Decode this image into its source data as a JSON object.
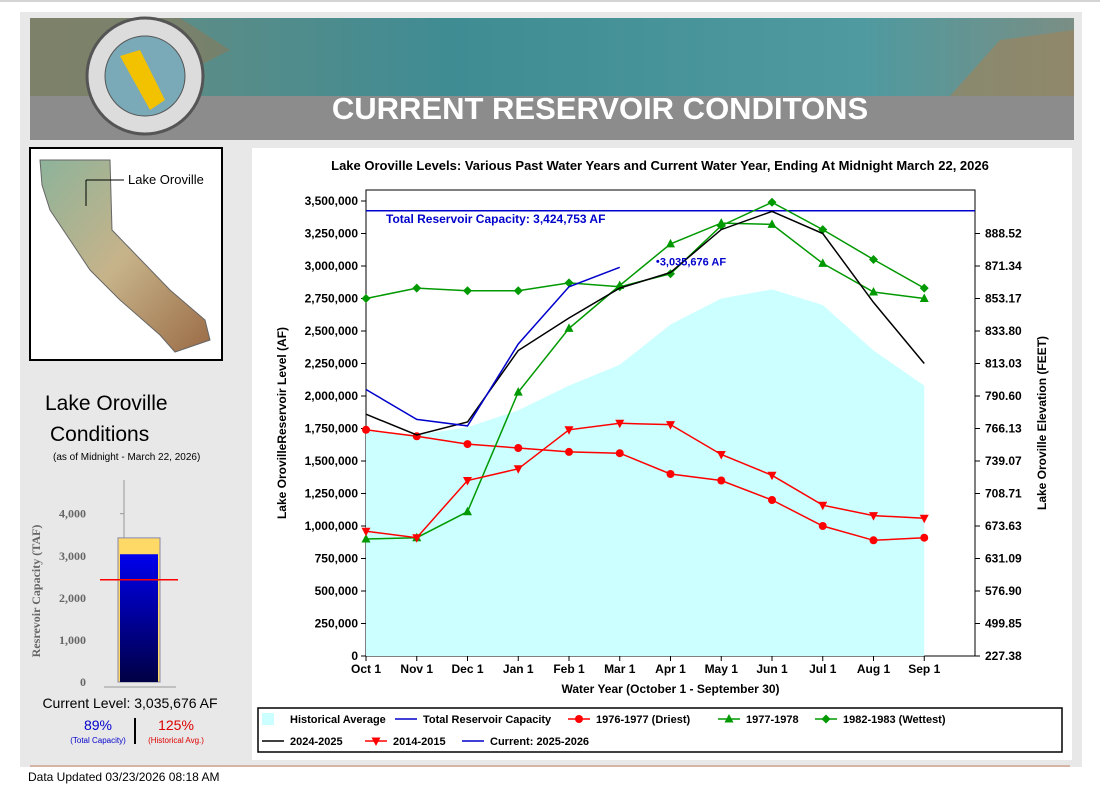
{
  "header": {
    "title": "CURRENT RESERVOIR CONDITONS"
  },
  "sidebar": {
    "map_label": "Lake Oroville",
    "heading": [
      "Lake Oroville",
      "Conditions"
    ],
    "as_of": "(as of Midnight - March 22, 2026)",
    "current_level": "Current Level: 3,035,676 AF",
    "pct_capacity": "89%",
    "pct_capacity_note": "(Total Capacity)",
    "pct_average": "125%",
    "pct_average_note": "(Historical Avg.)"
  },
  "chart_data": [
    {
      "type": "line",
      "title": "Lake Oroville Levels: Various Past Water Years and Current Water Year, Ending At Midnight March 22, 2026",
      "x_label": "Water Year (October 1 - September 30)",
      "y_label": "Lake OrovilleReservoir Level (AF)",
      "y2_label": "Lake Oroville Elevation (FEET)",
      "categories": [
        "Oct 1",
        "Nov 1",
        "Dec 1",
        "Jan 1",
        "Feb 1",
        "Mar 1",
        "Apr 1",
        "May 1",
        "Jun 1",
        "Jul 1",
        "Aug 1",
        "Sep 1"
      ],
      "ylim": [
        0,
        3500000
      ],
      "yticks": [
        0,
        {
          "value": 250000,
          "label": "250,000"
        },
        {
          "value": 500000,
          "label": "500,000"
        },
        {
          "value": 750000,
          "label": "750,000"
        },
        {
          "value": 1000000,
          "label": "1,000,000"
        },
        {
          "value": 1250000,
          "label": "1,250,000"
        },
        {
          "value": 1500000,
          "label": "1,500,000"
        },
        {
          "value": 1750000,
          "label": "1,750,000"
        },
        {
          "value": 2000000,
          "label": "2,000,000"
        },
        {
          "value": 2250000,
          "label": "2,250,000"
        },
        {
          "value": 2500000,
          "label": "2,500,000"
        },
        {
          "value": 2750000,
          "label": "2,750,000"
        },
        {
          "value": 3000000,
          "label": "3,000,000"
        },
        {
          "value": 3250000,
          "label": "3,250,000"
        },
        {
          "value": 3500000,
          "label": "3,500,000"
        }
      ],
      "y2ticks": [
        227.38,
        499.85,
        {
          "value": 576.9,
          "label": "576.90"
        },
        631.09,
        673.63,
        708.71,
        739.07,
        766.13,
        {
          "value": 790.6,
          "label": "790.60"
        },
        813.03,
        {
          "value": 833.8,
          "label": "833.80"
        },
        853.17,
        871.34,
        888.52
      ],
      "reference_line": {
        "name": "Total Reservoir Capacity",
        "value": 3424753,
        "label": "Total Reservoir Capacity: 3,424,753 AF",
        "color": "#0000cc"
      },
      "current_label": {
        "value": 3035676,
        "label": "3,035,676 AF"
      },
      "series": [
        {
          "name": "Historical Average",
          "kind": "area",
          "color": "#ccffff",
          "values": [
            1740000,
            1700000,
            1760000,
            1890000,
            2080000,
            2240000,
            2550000,
            2750000,
            2820000,
            2700000,
            2350000,
            2080000
          ]
        },
        {
          "name": "1976-1977 (Driest)",
          "marker": "circle",
          "color": "#ff0000",
          "values": [
            1740000,
            1690000,
            1630000,
            1600000,
            1570000,
            1560000,
            1400000,
            1350000,
            1200000,
            1000000,
            890000,
            910000
          ]
        },
        {
          "name": "1977-1978",
          "marker": "triangle-up",
          "color": "#009900",
          "values": [
            900000,
            910000,
            1110000,
            2030000,
            2520000,
            2850000,
            3170000,
            3330000,
            3320000,
            3020000,
            2800000,
            2750000
          ]
        },
        {
          "name": "1982-1983 (Wettest)",
          "marker": "diamond",
          "color": "#009900",
          "values": [
            2750000,
            2830000,
            2810000,
            2810000,
            2870000,
            2840000,
            2940000,
            3310000,
            3490000,
            3280000,
            3050000,
            2830000
          ]
        },
        {
          "name": "2024-2025",
          "marker": "none",
          "color": "#000000",
          "values": [
            1860000,
            1700000,
            1800000,
            2350000,
            2600000,
            2830000,
            2950000,
            3280000,
            3420000,
            3250000,
            2720000,
            2250000
          ]
        },
        {
          "name": "2014-2015",
          "marker": "triangle-down",
          "color": "#ff0000",
          "values": [
            960000,
            910000,
            1350000,
            1440000,
            1740000,
            1790000,
            1780000,
            1550000,
            1390000,
            1160000,
            1080000,
            1060000
          ]
        },
        {
          "name": "Current: 2025-2026",
          "marker": "none",
          "color": "#0000cc",
          "values": [
            2050000,
            1820000,
            1770000,
            2400000,
            2840000,
            2990000,
            null,
            null,
            null,
            null,
            null,
            null
          ]
        }
      ]
    },
    {
      "type": "bar",
      "y_label": "Resrevoir Capacity (TAF)",
      "ylim": [
        0,
        4800
      ],
      "yticks": [
        0,
        {
          "value": 1000,
          "label": "1,000"
        },
        {
          "value": 2000,
          "label": "2,000"
        },
        {
          "value": 3000,
          "label": "3,000"
        },
        {
          "value": 4000,
          "label": "4,000"
        }
      ],
      "capacity": {
        "value": 3424.753,
        "color": "#ffd966"
      },
      "current": {
        "value": 3035.676,
        "color": "#0000ee"
      },
      "historical_average": {
        "value": 2429,
        "color": "#ff0000"
      }
    }
  ],
  "footer": {
    "updated": "Data Updated 03/23/2026 08:18 AM"
  }
}
